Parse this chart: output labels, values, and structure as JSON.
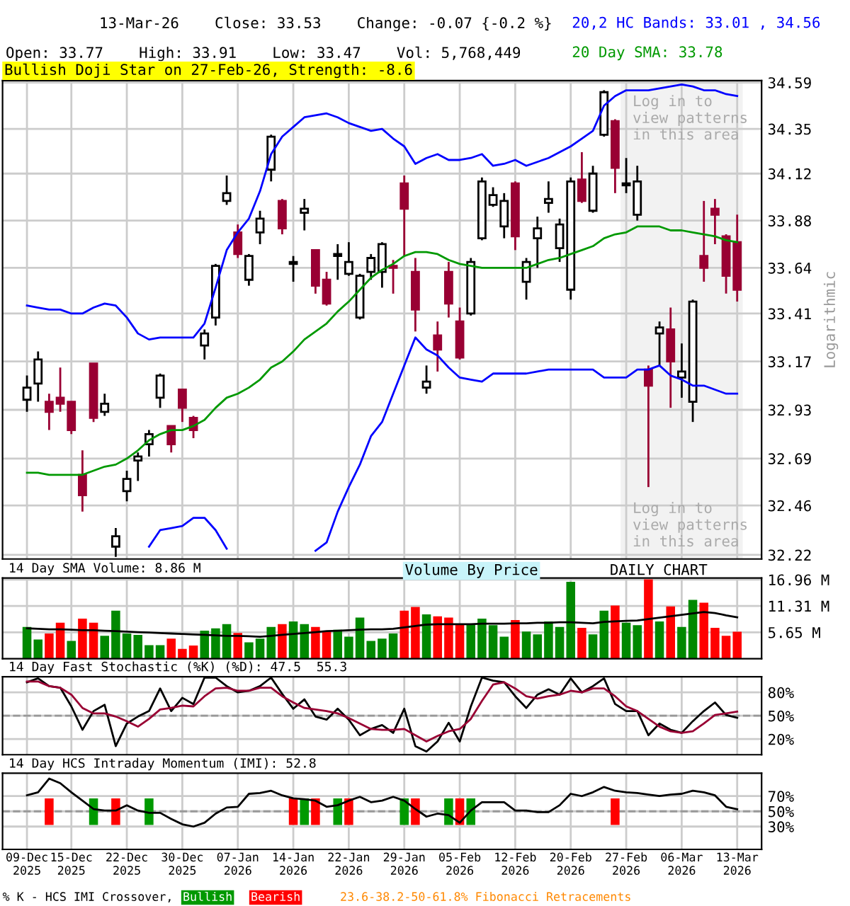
{
  "chart_data": [
    {
      "type": "candlestick",
      "title": "13-Mar-26    Close: 33.53    Change: -0.07 {-0.2 %}",
      "subtitle": "Open: 33.77    High: 33.91    Low: 33.47    Vol: 5,768,449",
      "categories": [
        "09-Dec\n2025",
        null,
        null,
        null,
        "15-Dec\n2025",
        null,
        null,
        null,
        null,
        "22-Dec\n2025",
        null,
        null,
        null,
        null,
        "30-Dec\n2025",
        null,
        null,
        null,
        null,
        "07-Jan\n2026",
        null,
        null,
        null,
        null,
        "14-Jan\n2026",
        null,
        null,
        null,
        null,
        "22-Jan\n2026",
        null,
        null,
        null,
        null,
        "29-Jan\n2026",
        null,
        null,
        null,
        null,
        "05-Feb\n2026",
        null,
        null,
        null,
        null,
        "12-Feb\n2026",
        null,
        null,
        null,
        null,
        "20-Feb\n2026",
        null,
        null,
        null,
        null,
        "27-Feb\n2026",
        null,
        null,
        null,
        null,
        "06-Mar\n2026",
        null,
        null,
        null,
        null,
        "13-Mar\n2026"
      ],
      "ohlc": [
        [
          32.98,
          33.1,
          32.92,
          33.04
        ],
        [
          33.06,
          33.22,
          32.97,
          33.18
        ],
        [
          32.97,
          33.01,
          32.83,
          32.92
        ],
        [
          32.99,
          33.14,
          32.92,
          32.96
        ],
        [
          32.97,
          32.97,
          32.81,
          32.83
        ],
        [
          32.61,
          32.73,
          32.43,
          32.51
        ],
        [
          33.16,
          33.16,
          32.87,
          32.89
        ],
        [
          32.92,
          33.01,
          32.9,
          32.96
        ],
        [
          32.26,
          32.35,
          32.21,
          32.31
        ],
        [
          32.53,
          32.63,
          32.48,
          32.59
        ],
        [
          32.68,
          32.72,
          32.58,
          32.7
        ],
        [
          32.76,
          32.83,
          32.7,
          32.81
        ],
        [
          32.99,
          33.11,
          32.94,
          33.1
        ],
        [
          32.85,
          32.85,
          32.72,
          32.76
        ],
        [
          33.03,
          33.03,
          32.87,
          32.94
        ],
        [
          32.89,
          32.9,
          32.79,
          32.83
        ],
        [
          33.25,
          33.33,
          33.18,
          33.31
        ],
        [
          33.39,
          33.66,
          33.35,
          33.65
        ],
        [
          33.98,
          34.11,
          33.96,
          34.02
        ],
        [
          33.82,
          33.86,
          33.69,
          33.71
        ],
        [
          33.58,
          33.71,
          33.55,
          33.7
        ],
        [
          33.82,
          33.93,
          33.76,
          33.89
        ],
        [
          34.14,
          34.32,
          34.08,
          34.31
        ],
        [
          33.98,
          33.99,
          33.81,
          33.84
        ],
        [
          33.66,
          33.7,
          33.57,
          33.67
        ],
        [
          33.92,
          33.99,
          33.83,
          33.94
        ],
        [
          33.73,
          33.73,
          33.51,
          33.55
        ],
        [
          33.58,
          33.62,
          33.45,
          33.46
        ],
        [
          33.7,
          33.76,
          33.58,
          33.71
        ],
        [
          33.61,
          33.77,
          33.6,
          33.67
        ],
        [
          33.39,
          33.61,
          33.38,
          33.6
        ],
        [
          33.62,
          33.71,
          33.58,
          33.69
        ],
        [
          33.62,
          33.77,
          33.54,
          33.76
        ],
        [
          33.65,
          33.68,
          33.51,
          33.64
        ],
        [
          34.07,
          34.11,
          33.7,
          33.94
        ],
        [
          33.62,
          33.69,
          33.32,
          33.43
        ],
        [
          33.04,
          33.15,
          33.01,
          33.07
        ],
        [
          33.3,
          33.37,
          33.12,
          33.23
        ],
        [
          33.62,
          33.67,
          33.39,
          33.46
        ],
        [
          33.37,
          33.44,
          33.18,
          33.19
        ],
        [
          33.41,
          33.69,
          33.4,
          33.67
        ],
        [
          33.79,
          34.1,
          33.78,
          34.08
        ],
        [
          33.96,
          34.05,
          33.95,
          34.01
        ],
        [
          33.85,
          34.02,
          33.79,
          33.98
        ],
        [
          34.07,
          34.08,
          33.73,
          33.8
        ],
        [
          33.57,
          33.69,
          33.48,
          33.67
        ],
        [
          33.79,
          33.9,
          33.64,
          33.84
        ],
        [
          33.97,
          34.08,
          33.92,
          33.99
        ],
        [
          33.74,
          33.89,
          33.67,
          33.86
        ],
        [
          33.53,
          34.1,
          33.48,
          34.08
        ],
        [
          34.09,
          34.23,
          33.97,
          33.98
        ],
        [
          33.93,
          34.16,
          33.92,
          34.12
        ],
        [
          34.32,
          34.55,
          34.31,
          34.54
        ],
        [
          34.39,
          34.4,
          34.02,
          34.15
        ],
        [
          34.06,
          34.2,
          34.02,
          34.07
        ],
        [
          33.91,
          34.16,
          33.88,
          34.08
        ],
        [
          33.13,
          33.15,
          32.55,
          33.05
        ],
        [
          33.31,
          33.37,
          33.15,
          33.34
        ],
        [
          33.33,
          33.44,
          32.94,
          33.17
        ],
        [
          33.09,
          33.26,
          32.99,
          33.12
        ],
        [
          32.97,
          33.48,
          32.87,
          33.47
        ],
        [
          33.7,
          33.98,
          33.57,
          33.64
        ],
        [
          33.94,
          33.99,
          33.76,
          33.91
        ],
        [
          33.8,
          33.81,
          33.51,
          33.6
        ],
        [
          33.77,
          33.91,
          33.47,
          33.53
        ]
      ],
      "colors": [
        "#ffffff",
        "#ffffff",
        "#990033",
        "#990033",
        "#990033",
        "#990033",
        "#990033",
        "#ffffff",
        "#ffffff",
        "#ffffff",
        "#ffffff",
        "#ffffff",
        "#ffffff",
        "#990033",
        "#990033",
        "#990033",
        "#ffffff",
        "#ffffff",
        "#ffffff",
        "#990033",
        "#ffffff",
        "#ffffff",
        "#ffffff",
        "#990033",
        "#ffffff",
        "#ffffff",
        "#990033",
        "#990033",
        "#ffffff",
        "#ffffff",
        "#ffffff",
        "#ffffff",
        "#ffffff",
        "#990033",
        "#990033",
        "#990033",
        "#ffffff",
        "#990033",
        "#990033",
        "#990033",
        "#ffffff",
        "#ffffff",
        "#ffffff",
        "#ffffff",
        "#990033",
        "#ffffff",
        "#ffffff",
        "#ffffff",
        "#ffffff",
        "#ffffff",
        "#990033",
        "#ffffff",
        "#ffffff",
        "#990033",
        "#ffffff",
        "#ffffff",
        "#990033",
        "#ffffff",
        "#990033",
        "#ffffff",
        "#ffffff",
        "#990033",
        "#990033",
        "#990033",
        "#990033"
      ],
      "series": [
        {
          "type": "line",
          "name": "20,2 HC Bands: 33.01 , 34.56",
          "color": "#0000ff",
          "values": [
            33.45,
            33.44,
            33.43,
            33.43,
            33.41,
            33.41,
            33.44,
            33.46,
            33.45,
            33.39,
            33.31,
            33.28,
            33.29,
            33.29,
            33.29,
            33.29,
            33.36,
            33.54,
            33.73,
            33.82,
            33.89,
            34.03,
            34.22,
            34.31,
            34.36,
            34.41,
            34.42,
            34.43,
            34.41,
            34.38,
            34.36,
            34.34,
            34.35,
            34.3,
            34.26,
            34.17,
            34.2,
            34.22,
            34.19,
            34.19,
            34.2,
            34.22,
            34.16,
            34.17,
            34.19,
            34.16,
            34.18,
            34.2,
            34.23,
            34.26,
            34.3,
            34.34,
            34.47,
            34.52,
            34.55,
            34.55,
            34.55,
            34.56,
            34.57,
            34.58,
            34.57,
            34.55,
            34.55,
            34.53,
            34.52
          ]
        },
        {
          "type": "line",
          "color": "#0000ff",
          "values": [
            null,
            null,
            null,
            null,
            null,
            null,
            null,
            null,
            null,
            null,
            null,
            32.26,
            32.34,
            32.35,
            32.36,
            32.4,
            32.4,
            32.34,
            32.25,
            null,
            null,
            null,
            null,
            null,
            null,
            null,
            32.24,
            32.28,
            32.43,
            32.55,
            32.66,
            32.8,
            32.87,
            33.01,
            33.15,
            33.29,
            33.23,
            33.2,
            33.14,
            33.09,
            33.08,
            33.07,
            33.11,
            33.11,
            33.11,
            33.11,
            33.12,
            33.13,
            33.13,
            33.13,
            33.13,
            33.13,
            33.09,
            33.09,
            33.09,
            33.13,
            33.13,
            33.15,
            33.1,
            33.08,
            33.05,
            33.05,
            33.03,
            33.01,
            33.01
          ]
        },
        {
          "type": "line",
          "name": "20 Day SMA: 33.78",
          "color": "#009900",
          "values": [
            32.62,
            32.62,
            32.61,
            32.61,
            32.61,
            32.61,
            32.63,
            32.65,
            32.66,
            32.69,
            32.73,
            32.78,
            32.81,
            32.83,
            32.83,
            32.85,
            32.88,
            32.94,
            32.99,
            33.01,
            33.04,
            33.08,
            33.14,
            33.17,
            33.22,
            33.28,
            33.32,
            33.36,
            33.42,
            33.47,
            33.53,
            33.59,
            33.63,
            33.66,
            33.7,
            33.72,
            33.72,
            33.71,
            33.68,
            33.66,
            33.65,
            33.64,
            33.64,
            33.64,
            33.64,
            33.64,
            33.66,
            33.68,
            33.69,
            33.71,
            33.73,
            33.75,
            33.79,
            33.81,
            33.82,
            33.85,
            33.85,
            33.85,
            33.83,
            33.83,
            33.82,
            33.81,
            33.8,
            33.78,
            33.77
          ]
        }
      ],
      "log": "y",
      "ylim": [
        32.2,
        34.6
      ],
      "yticks": [
        32.22,
        32.46,
        32.69,
        32.93,
        33.17,
        33.41,
        33.64,
        33.88,
        34.12,
        34.35,
        34.59
      ],
      "ylabel": "Logarithmic",
      "grid": true,
      "tick_labels": "y",
      "legend": "top right",
      "bands": [
        {
          "axis": "x",
          "from": "27-Feb\n2026",
          "to": "13-Mar\n2026",
          "color": "#f2f2f2"
        }
      ],
      "annotations": [
        "Bullish Doji Star on 27-Feb-26, Strength: -8.6",
        "Log in to\nview patterns\nin this area",
        "Log in to\nview patterns\nin this area"
      ]
    },
    {
      "type": "bar",
      "categories": [
        "09-Dec\n2025",
        null,
        null,
        null,
        "15-Dec\n2025",
        null,
        null,
        null,
        null,
        "22-Dec\n2025",
        null,
        null,
        null,
        null,
        "30-Dec\n2025",
        null,
        null,
        null,
        null,
        "07-Jan\n2026",
        null,
        null,
        null,
        null,
        "14-Jan\n2026",
        null,
        null,
        null,
        null,
        "22-Jan\n2026",
        null,
        null,
        null,
        null,
        "29-Jan\n2026",
        null,
        null,
        null,
        null,
        "05-Feb\n2026",
        null,
        null,
        null,
        null,
        "12-Feb\n2026",
        null,
        null,
        null,
        null,
        "20-Feb\n2026",
        null,
        null,
        null,
        null,
        "27-Feb\n2026",
        null,
        null,
        null,
        null,
        "06-Mar\n2026",
        null,
        null,
        null,
        null,
        "13-Mar\n2026"
      ],
      "series": [
        {
          "type": "bar",
          "values": [
            6.8,
            4.1,
            5.4,
            7.7,
            3.8,
            8.6,
            7.7,
            4.9,
            10.3,
            5.4,
            5.1,
            2.9,
            2.9,
            4.3,
            2.1,
            2.8,
            6.0,
            6.5,
            7.4,
            5.5,
            3.5,
            4.3,
            6.8,
            7.4,
            8.0,
            7.4,
            6.8,
            5.9,
            6.2,
            4.7,
            8.8,
            3.8,
            4.3,
            5.4,
            10.3,
            11.1,
            9.5,
            9.1,
            8.8,
            7.4,
            7.4,
            8.6,
            7.2,
            4.7,
            8.3,
            5.8,
            5.2,
            8.0,
            6.8,
            16.5,
            6.6,
            5.2,
            10.3,
            11.4,
            7.7,
            7.2,
            17.0,
            8.0,
            11.2,
            6.8,
            12.6,
            12.0,
            6.6,
            4.9,
            5.77
          ],
          "colors": [
            "#008800",
            "#008800",
            "#ff0000",
            "#ff0000",
            "#008800",
            "#ff0000",
            "#ff0000",
            "#008800",
            "#008800",
            "#008800",
            "#008800",
            "#008800",
            "#008800",
            "#ff0000",
            "#ff0000",
            "#ff0000",
            "#008800",
            "#008800",
            "#008800",
            "#ff0000",
            "#008800",
            "#008800",
            "#008800",
            "#ff0000",
            "#008800",
            "#008800",
            "#ff0000",
            "#ff0000",
            "#008800",
            "#008800",
            "#008800",
            "#008800",
            "#008800",
            "#008800",
            "#ff0000",
            "#ff0000",
            "#008800",
            "#ff0000",
            "#ff0000",
            "#ff0000",
            "#008800",
            "#008800",
            "#008800",
            "#008800",
            "#ff0000",
            "#008800",
            "#008800",
            "#008800",
            "#008800",
            "#008800",
            "#ff0000",
            "#008800",
            "#008800",
            "#ff0000",
            "#008800",
            "#008800",
            "#ff0000",
            "#008800",
            "#ff0000",
            "#008800",
            "#008800",
            "#ff0000",
            "#ff0000",
            "#ff0000",
            "#ff0000"
          ]
        },
        {
          "type": "line",
          "name": "14 Day SMA Volume: 8.86 M",
          "color": "#000000",
          "values": [
            6.5,
            6.4,
            6.3,
            6.3,
            6.2,
            6.1,
            6.1,
            6.0,
            5.9,
            5.8,
            5.7,
            5.6,
            5.5,
            5.4,
            5.3,
            5.2,
            5.1,
            5.0,
            4.9,
            4.9,
            4.8,
            4.7,
            4.9,
            5.1,
            5.3,
            5.5,
            5.7,
            5.9,
            6.0,
            6.1,
            6.2,
            6.3,
            6.3,
            6.4,
            6.7,
            7.0,
            7.3,
            7.4,
            7.4,
            7.4,
            7.4,
            7.5,
            7.5,
            7.5,
            7.6,
            7.6,
            7.7,
            7.7,
            7.8,
            7.8,
            7.7,
            7.6,
            7.9,
            8.0,
            8.1,
            8.2,
            8.5,
            8.8,
            9.1,
            9.4,
            9.7,
            10.0,
            9.8,
            9.3,
            8.86
          ]
        }
      ],
      "ylim": [
        0,
        17.3
      ],
      "yticks": [
        {
          "value": 5.65,
          "label": "5.65 M"
        },
        {
          "value": 11.31,
          "label": "11.31 M"
        },
        {
          "value": 16.96,
          "label": "16.96 M"
        }
      ],
      "grid": true,
      "tick_labels": "y",
      "legend": "top left",
      "annotations": [
        "Volume By Price",
        "DAILY CHART"
      ]
    },
    {
      "type": "line",
      "title": "14 Day Fast Stochastic (%K) (%D): 47.5  55.3",
      "categories": [
        "09-Dec\n2025",
        null,
        null,
        null,
        "15-Dec\n2025",
        null,
        null,
        null,
        null,
        "22-Dec\n2025",
        null,
        null,
        null,
        null,
        "30-Dec\n2025",
        null,
        null,
        null,
        null,
        "07-Jan\n2026",
        null,
        null,
        null,
        null,
        "14-Jan\n2026",
        null,
        null,
        null,
        null,
        "22-Jan\n2026",
        null,
        null,
        null,
        null,
        "29-Jan\n2026",
        null,
        null,
        null,
        null,
        "05-Feb\n2026",
        null,
        null,
        null,
        null,
        "12-Feb\n2026",
        null,
        null,
        null,
        null,
        "20-Feb\n2026",
        null,
        null,
        null,
        null,
        "27-Feb\n2026",
        null,
        null,
        null,
        null,
        "06-Mar\n2026",
        null,
        null,
        null,
        null,
        "13-Mar\n2026"
      ],
      "series": [
        {
          "color": "#000000",
          "values": [
            93,
            98,
            88,
            86,
            62,
            32,
            56,
            64,
            11,
            40,
            49,
            56,
            85,
            56,
            73,
            65,
            99,
            99,
            88,
            80,
            82,
            88,
            99,
            78,
            59,
            71,
            49,
            45,
            59,
            45,
            25,
            33,
            38,
            28,
            59,
            11,
            4,
            17,
            41,
            17,
            62,
            99,
            95,
            93,
            75,
            60,
            77,
            84,
            77,
            98,
            80,
            88,
            98,
            65,
            56,
            56,
            25,
            40,
            32,
            28,
            43,
            56,
            67,
            51,
            47.5
          ]
        },
        {
          "color": "#990033",
          "values": [
            94,
            94,
            88,
            86,
            77,
            60,
            53,
            53,
            49,
            43,
            36,
            46,
            58,
            60,
            63,
            62,
            75,
            85,
            86,
            82,
            82,
            86,
            86,
            75,
            67,
            60,
            58,
            56,
            53,
            47,
            40,
            33,
            32,
            32,
            33,
            25,
            17,
            24,
            30,
            33,
            46,
            69,
            90,
            93,
            85,
            75,
            72,
            75,
            77,
            82,
            80,
            85,
            85,
            75,
            62,
            56,
            46,
            36,
            30,
            28,
            30,
            40,
            51,
            53,
            55.3
          ]
        }
      ],
      "ylim": [
        0,
        100
      ],
      "yticks": [
        {
          "value": 20,
          "label": "20%"
        },
        {
          "value": 50,
          "label": "50%"
        },
        {
          "value": 80,
          "label": "80%"
        }
      ],
      "ref_lines": [
        {
          "axis": "y",
          "value": 50,
          "line_style": "dashed",
          "color": "#999999"
        }
      ],
      "grid": true,
      "tick_labels": "y"
    },
    {
      "type": "line",
      "title": "14 Day HCS Intraday Momentum (IMI): 52.8",
      "categories": [
        "09-Dec\n2025",
        null,
        null,
        null,
        "15-Dec\n2025",
        null,
        null,
        null,
        null,
        "22-Dec\n2025",
        null,
        null,
        null,
        null,
        "30-Dec\n2025",
        null,
        null,
        null,
        null,
        "07-Jan\n2026",
        null,
        null,
        null,
        null,
        "14-Jan\n2026",
        null,
        null,
        null,
        null,
        "22-Jan\n2026",
        null,
        null,
        null,
        null,
        "29-Jan\n2026",
        null,
        null,
        null,
        null,
        "05-Feb\n2026",
        null,
        null,
        null,
        null,
        "12-Feb\n2026",
        null,
        null,
        null,
        null,
        "20-Feb\n2026",
        null,
        null,
        null,
        null,
        "27-Feb\n2026",
        null,
        null,
        null,
        null,
        "06-Mar\n2026",
        null,
        null,
        null,
        null,
        "13-Mar\n2026"
      ],
      "series": [
        {
          "type": "bar",
          "name": "Bullish",
          "color": "#009900",
          "values": [
            null,
            null,
            null,
            null,
            null,
            null,
            35,
            null,
            null,
            null,
            null,
            35,
            null,
            null,
            null,
            null,
            null,
            null,
            null,
            null,
            null,
            null,
            null,
            null,
            null,
            35,
            null,
            null,
            35,
            null,
            null,
            null,
            null,
            null,
            35,
            null,
            null,
            null,
            35,
            null,
            35,
            null,
            null,
            null,
            null,
            null,
            null,
            null,
            null,
            null,
            null,
            null,
            null,
            null,
            null,
            null,
            null,
            null,
            null,
            null,
            null,
            null,
            null,
            null,
            null
          ],
          "base": [
            null,
            null,
            null,
            null,
            null,
            null,
            32,
            null,
            null,
            null,
            null,
            32,
            null,
            null,
            null,
            null,
            null,
            null,
            null,
            null,
            null,
            null,
            null,
            null,
            null,
            32,
            null,
            null,
            32,
            null,
            null,
            null,
            null,
            null,
            32,
            null,
            null,
            null,
            32,
            null,
            32,
            null,
            null,
            null,
            null,
            null,
            null,
            null,
            null,
            null,
            null,
            null,
            null,
            null,
            null,
            null,
            null,
            null,
            null,
            null,
            null,
            null,
            null,
            null,
            null
          ]
        },
        {
          "type": "bar",
          "name": "Bearish",
          "color": "#ff0000",
          "values": [
            null,
            null,
            35,
            null,
            null,
            null,
            null,
            null,
            35,
            null,
            null,
            null,
            null,
            null,
            null,
            null,
            null,
            null,
            null,
            null,
            null,
            null,
            null,
            null,
            35,
            null,
            35,
            null,
            null,
            35,
            null,
            null,
            null,
            null,
            null,
            35,
            null,
            null,
            null,
            35,
            null,
            null,
            null,
            null,
            null,
            null,
            null,
            null,
            null,
            null,
            null,
            null,
            null,
            35,
            null,
            null,
            null,
            null,
            null,
            null,
            null,
            null,
            null,
            null,
            null
          ],
          "base": [
            null,
            null,
            32,
            null,
            null,
            null,
            null,
            null,
            32,
            null,
            null,
            null,
            null,
            null,
            null,
            null,
            null,
            null,
            null,
            null,
            null,
            null,
            null,
            null,
            32,
            null,
            32,
            null,
            null,
            32,
            null,
            null,
            null,
            null,
            null,
            32,
            null,
            null,
            null,
            32,
            null,
            null,
            null,
            null,
            null,
            null,
            null,
            null,
            null,
            null,
            null,
            null,
            null,
            32,
            null,
            null,
            null,
            null,
            null,
            null,
            null,
            null,
            null,
            null,
            null
          ]
        },
        {
          "type": "line",
          "color": "#000000",
          "values": [
            71,
            75,
            93,
            87,
            75,
            64,
            53,
            51,
            51,
            58,
            51,
            48,
            48,
            40,
            33,
            30,
            35,
            47,
            55,
            56,
            73,
            74,
            77,
            71,
            67,
            66,
            64,
            56,
            58,
            64,
            69,
            62,
            64,
            69,
            64,
            53,
            43,
            47,
            45,
            35,
            51,
            62,
            62,
            62,
            51,
            51,
            49,
            49,
            58,
            73,
            70,
            75,
            82,
            77,
            75,
            74,
            72,
            70,
            72,
            73,
            77,
            75,
            71,
            56,
            52.8
          ]
        }
      ],
      "ylim": [
        0,
        100
      ],
      "yticks": [
        {
          "value": 30,
          "label": "30%"
        },
        {
          "value": 50,
          "label": "50%"
        },
        {
          "value": 70,
          "label": "70%"
        }
      ],
      "ref_lines": [
        {
          "axis": "y",
          "value": 50,
          "line_style": "dashed",
          "color": "#999999"
        }
      ],
      "grid": true,
      "legend": "bottom left",
      "annotations": [
        "% K - HCS IMI Crossover,",
        "23.6-38.2-50-61.8% Fibonacci Retracements"
      ]
    }
  ]
}
